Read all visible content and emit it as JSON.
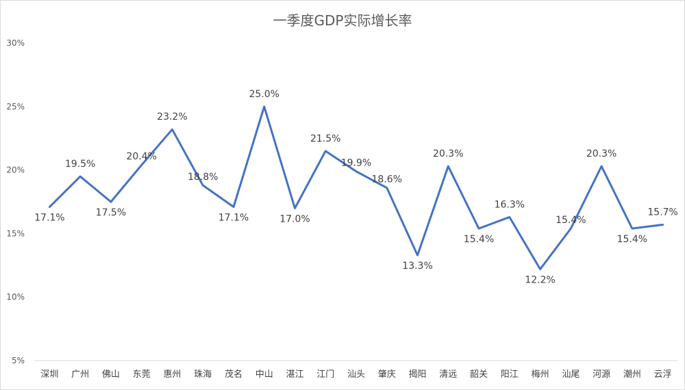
{
  "chart_data": {
    "type": "line",
    "title": "一季度GDP实际增长率",
    "xlabel": "",
    "ylabel": "",
    "ylim": [
      5,
      30
    ],
    "yticks": [
      "5%",
      "10%",
      "15%",
      "20%",
      "25%",
      "30%"
    ],
    "grid": false,
    "legend": "none",
    "line_color": "#4472C4",
    "categories": [
      "深圳",
      "广州",
      "佛山",
      "东莞",
      "惠州",
      "珠海",
      "茂名",
      "中山",
      "湛江",
      "江门",
      "汕头",
      "肇庆",
      "揭阳",
      "清远",
      "韶关",
      "阳江",
      "梅州",
      "汕尾",
      "河源",
      "潮州",
      "云浮"
    ],
    "values": [
      17.1,
      19.5,
      17.5,
      20.4,
      23.2,
      18.8,
      17.1,
      25.0,
      17.0,
      21.5,
      19.9,
      18.6,
      13.3,
      20.3,
      15.4,
      16.3,
      12.2,
      15.4,
      20.3,
      15.4,
      15.7
    ],
    "data_labels": [
      "17.1%",
      "19.5%",
      "17.5%",
      "20.4%",
      "23.2%",
      "18.8%",
      "17.1%",
      "25.0%",
      "17.0%",
      "21.5%",
      "19.9%",
      "18.6%",
      "13.3%",
      "20.3%",
      "15.4%",
      "16.3%",
      "12.2%",
      "15.4%",
      "20.3%",
      "15.4%",
      "15.7%"
    ]
  }
}
